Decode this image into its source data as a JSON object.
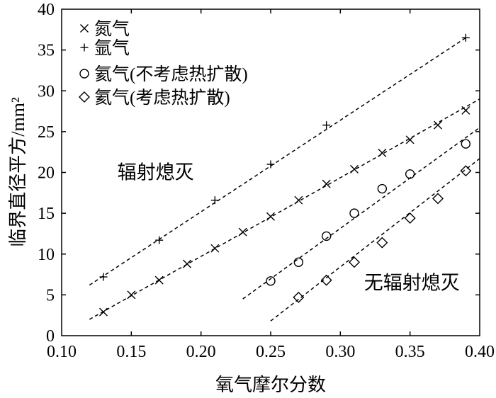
{
  "chart_data": {
    "type": "scatter",
    "xlabel": "氧气摩尔分数",
    "ylabel": "临界直径平方/mm²",
    "xlim": [
      0.1,
      0.4
    ],
    "ylim": [
      0,
      40
    ],
    "xticks": [
      "0.10",
      "0.15",
      "0.20",
      "0.25",
      "0.30",
      "0.35",
      "0.40"
    ],
    "yticks": [
      "0",
      "5",
      "10",
      "15",
      "20",
      "25",
      "30",
      "35",
      "40"
    ],
    "grid": false,
    "legend_position": "top-left",
    "series": [
      {
        "name": "氮气",
        "marker": "x",
        "points": [
          [
            0.13,
            2.9
          ],
          [
            0.15,
            5.0
          ],
          [
            0.17,
            6.8
          ],
          [
            0.19,
            8.8
          ],
          [
            0.21,
            10.7
          ],
          [
            0.23,
            12.7
          ],
          [
            0.25,
            14.6
          ],
          [
            0.27,
            16.6
          ],
          [
            0.29,
            18.6
          ],
          [
            0.31,
            20.4
          ],
          [
            0.33,
            22.4
          ],
          [
            0.35,
            24.0
          ],
          [
            0.37,
            25.8
          ],
          [
            0.39,
            27.6
          ]
        ],
        "fit": [
          [
            0.12,
            2.0
          ],
          [
            0.4,
            29.0
          ]
        ]
      },
      {
        "name": "氩气",
        "marker": "+",
        "points": [
          [
            0.13,
            7.2
          ],
          [
            0.17,
            11.7
          ],
          [
            0.21,
            16.6
          ],
          [
            0.25,
            21.0
          ],
          [
            0.29,
            25.8
          ],
          [
            0.39,
            36.5
          ]
        ],
        "fit": [
          [
            0.12,
            6.2
          ],
          [
            0.39,
            36.5
          ]
        ]
      },
      {
        "name": "氦气(不考虑热扩散)",
        "marker": "circle",
        "points": [
          [
            0.25,
            6.7
          ],
          [
            0.27,
            9.0
          ],
          [
            0.29,
            12.2
          ],
          [
            0.31,
            15.0
          ],
          [
            0.33,
            18.0
          ],
          [
            0.35,
            19.8
          ],
          [
            0.39,
            23.5
          ]
        ],
        "fit": [
          [
            0.23,
            4.5
          ],
          [
            0.4,
            25.5
          ]
        ]
      },
      {
        "name": "氦气(考虑热扩散)",
        "marker": "diamond",
        "points": [
          [
            0.27,
            4.7
          ],
          [
            0.29,
            6.8
          ],
          [
            0.31,
            9.0
          ],
          [
            0.33,
            11.4
          ],
          [
            0.35,
            14.4
          ],
          [
            0.37,
            16.8
          ],
          [
            0.39,
            20.2
          ]
        ],
        "fit": [
          [
            0.25,
            1.8
          ],
          [
            0.4,
            21.7
          ]
        ]
      }
    ],
    "annotations": [
      {
        "text": "辐射熄灭",
        "x": 0.14,
        "y": 19.2
      },
      {
        "text": "无辐射熄灭",
        "x": 0.317,
        "y": 5.7
      }
    ]
  }
}
